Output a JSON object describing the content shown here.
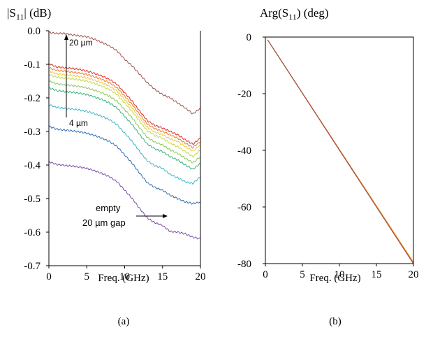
{
  "chart_data": [
    {
      "type": "line",
      "panel_caption": "(a)",
      "y_title_main": "|S",
      "y_title_sub": "11",
      "y_title_tail": "| (dB)",
      "xlabel": "Freq. (GHz)",
      "xlim": [
        0,
        20
      ],
      "ylim": [
        -0.7,
        0.0
      ],
      "x_ticks": [
        0,
        5,
        10,
        15,
        20
      ],
      "x_tick_labels": [
        "0",
        "5",
        "10",
        "15",
        "20"
      ],
      "y_ticks": [
        0.0,
        -0.1,
        -0.2,
        -0.3,
        -0.4,
        -0.5,
        -0.6,
        -0.7
      ],
      "y_tick_labels": [
        "0.0",
        "-0.1",
        "-0.2",
        "-0.3",
        "-0.4",
        "-0.5",
        "-0.6",
        "-0.7"
      ],
      "grid": false,
      "annotations": {
        "top_label": "20 µm",
        "bottom_label": "4 µm",
        "empty_line1": "empty",
        "empty_line2": "20 µm  gap"
      },
      "x": [
        0,
        1,
        2,
        3,
        4,
        5,
        6,
        7,
        8,
        9,
        10,
        11,
        12,
        13,
        14,
        15,
        16,
        17,
        18,
        19,
        20
      ],
      "series": [
        {
          "color": "#a0524a",
          "values": [
            -0.005,
            -0.008,
            -0.008,
            -0.012,
            -0.015,
            -0.018,
            -0.025,
            -0.035,
            -0.045,
            -0.06,
            -0.085,
            -0.105,
            -0.13,
            -0.155,
            -0.175,
            -0.19,
            -0.2,
            -0.215,
            -0.23,
            -0.248,
            -0.23
          ]
        },
        {
          "color": "#d9302c",
          "values": [
            -0.098,
            -0.108,
            -0.11,
            -0.112,
            -0.115,
            -0.12,
            -0.127,
            -0.135,
            -0.145,
            -0.16,
            -0.185,
            -0.21,
            -0.24,
            -0.268,
            -0.282,
            -0.29,
            -0.3,
            -0.31,
            -0.325,
            -0.338,
            -0.32
          ]
        },
        {
          "color": "#f07a2a",
          "values": [
            -0.11,
            -0.118,
            -0.12,
            -0.123,
            -0.126,
            -0.13,
            -0.137,
            -0.145,
            -0.155,
            -0.17,
            -0.195,
            -0.22,
            -0.25,
            -0.278,
            -0.292,
            -0.3,
            -0.31,
            -0.32,
            -0.335,
            -0.348,
            -0.33
          ]
        },
        {
          "color": "#f3c63c",
          "values": [
            -0.12,
            -0.128,
            -0.131,
            -0.133,
            -0.136,
            -0.14,
            -0.147,
            -0.155,
            -0.165,
            -0.18,
            -0.205,
            -0.23,
            -0.26,
            -0.288,
            -0.302,
            -0.31,
            -0.322,
            -0.33,
            -0.345,
            -0.358,
            -0.34
          ]
        },
        {
          "color": "#c5d94a",
          "values": [
            -0.13,
            -0.138,
            -0.141,
            -0.143,
            -0.146,
            -0.15,
            -0.157,
            -0.165,
            -0.175,
            -0.19,
            -0.215,
            -0.24,
            -0.27,
            -0.298,
            -0.312,
            -0.32,
            -0.335,
            -0.345,
            -0.36,
            -0.375,
            -0.355
          ]
        },
        {
          "color": "#8dc85a",
          "values": [
            -0.15,
            -0.158,
            -0.161,
            -0.163,
            -0.166,
            -0.17,
            -0.177,
            -0.185,
            -0.195,
            -0.21,
            -0.235,
            -0.26,
            -0.29,
            -0.318,
            -0.332,
            -0.34,
            -0.355,
            -0.365,
            -0.38,
            -0.393,
            -0.375
          ]
        },
        {
          "color": "#3cb07a",
          "values": [
            -0.17,
            -0.178,
            -0.181,
            -0.183,
            -0.186,
            -0.19,
            -0.197,
            -0.205,
            -0.215,
            -0.23,
            -0.255,
            -0.28,
            -0.31,
            -0.338,
            -0.352,
            -0.36,
            -0.375,
            -0.385,
            -0.4,
            -0.413,
            -0.395
          ]
        },
        {
          "color": "#3bb8c4",
          "values": [
            -0.22,
            -0.228,
            -0.231,
            -0.233,
            -0.236,
            -0.24,
            -0.247,
            -0.255,
            -0.265,
            -0.28,
            -0.305,
            -0.33,
            -0.36,
            -0.388,
            -0.402,
            -0.41,
            -0.428,
            -0.438,
            -0.45,
            -0.455,
            -0.435
          ]
        },
        {
          "color": "#2f6fb0",
          "values": [
            -0.285,
            -0.293,
            -0.296,
            -0.298,
            -0.301,
            -0.305,
            -0.312,
            -0.32,
            -0.33,
            -0.345,
            -0.37,
            -0.395,
            -0.425,
            -0.453,
            -0.467,
            -0.475,
            -0.49,
            -0.5,
            -0.51,
            -0.515,
            -0.51
          ]
        },
        {
          "color": "#7b4ea3",
          "values": [
            -0.39,
            -0.398,
            -0.401,
            -0.403,
            -0.406,
            -0.41,
            -0.417,
            -0.425,
            -0.435,
            -0.45,
            -0.475,
            -0.5,
            -0.53,
            -0.558,
            -0.572,
            -0.58,
            -0.598,
            -0.6,
            -0.605,
            -0.615,
            -0.62
          ]
        }
      ]
    },
    {
      "type": "line",
      "panel_caption": "(b)",
      "y_title_main": "Arg(S",
      "y_title_sub": "11",
      "y_title_tail": ") (deg)",
      "xlabel": "Freq. (GHz)",
      "xlim": [
        0,
        20
      ],
      "ylim": [
        -80,
        0
      ],
      "x_ticks": [
        0,
        5,
        10,
        15,
        20
      ],
      "x_tick_labels": [
        "0",
        "5",
        "10",
        "15",
        "20"
      ],
      "y_ticks": [
        0,
        -20,
        -40,
        -60,
        -80
      ],
      "y_tick_labels": [
        "0",
        "-20",
        "-40",
        "-60",
        "-80"
      ],
      "grid": false,
      "x": [
        0.3,
        20
      ],
      "series": [
        {
          "color": "#7b4ea3",
          "values": [
            -1,
            -80
          ]
        },
        {
          "color": "#2f6fb0",
          "values": [
            -1,
            -80
          ]
        },
        {
          "color": "#3bb8c4",
          "values": [
            -1,
            -79.9
          ]
        },
        {
          "color": "#3cb07a",
          "values": [
            -1,
            -79.8
          ]
        },
        {
          "color": "#c5d94a",
          "values": [
            -1,
            -79.6
          ]
        },
        {
          "color": "#f3c63c",
          "values": [
            -1,
            -79.4
          ]
        },
        {
          "color": "#f07a2a",
          "values": [
            -1,
            -79.7
          ]
        },
        {
          "color": "#d9302c",
          "values": [
            -1,
            -80
          ]
        },
        {
          "color": "#a0524a",
          "values": [
            -1,
            -80
          ]
        }
      ]
    }
  ]
}
